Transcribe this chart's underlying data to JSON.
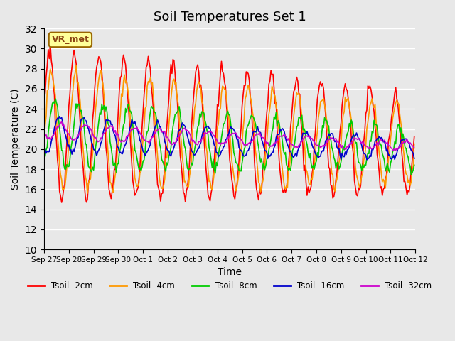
{
  "title": "Soil Temperatures Set 1",
  "xlabel": "Time",
  "ylabel": "Soil Temperature (C)",
  "ylim": [
    10,
    32
  ],
  "yticks": [
    10,
    12,
    14,
    16,
    18,
    20,
    22,
    24,
    26,
    28,
    30,
    32
  ],
  "background_color": "#e8e8e8",
  "plot_bg_color": "#e8e8e8",
  "grid_color": "#ffffff",
  "annotation_text": "VR_met",
  "annotation_box_color": "#ffff99",
  "annotation_border_color": "#996600",
  "series_colors": {
    "Tsoil -2cm": "#ff0000",
    "Tsoil -4cm": "#ff9900",
    "Tsoil -8cm": "#00cc00",
    "Tsoil -16cm": "#0000cc",
    "Tsoil -32cm": "#cc00cc"
  },
  "x_labels": [
    "Sep 27",
    "Sep 28",
    "Sep 29",
    "Sep 30",
    "Oct 1",
    "Oct 2",
    "Oct 3",
    "Oct 4",
    "Oct 5",
    "Oct 6",
    "Oct 7",
    "Oct 8",
    "Oct 9",
    "Oct 10",
    "Oct 11",
    "Oct 12"
  ],
  "num_days": 15,
  "points_per_day": 24
}
